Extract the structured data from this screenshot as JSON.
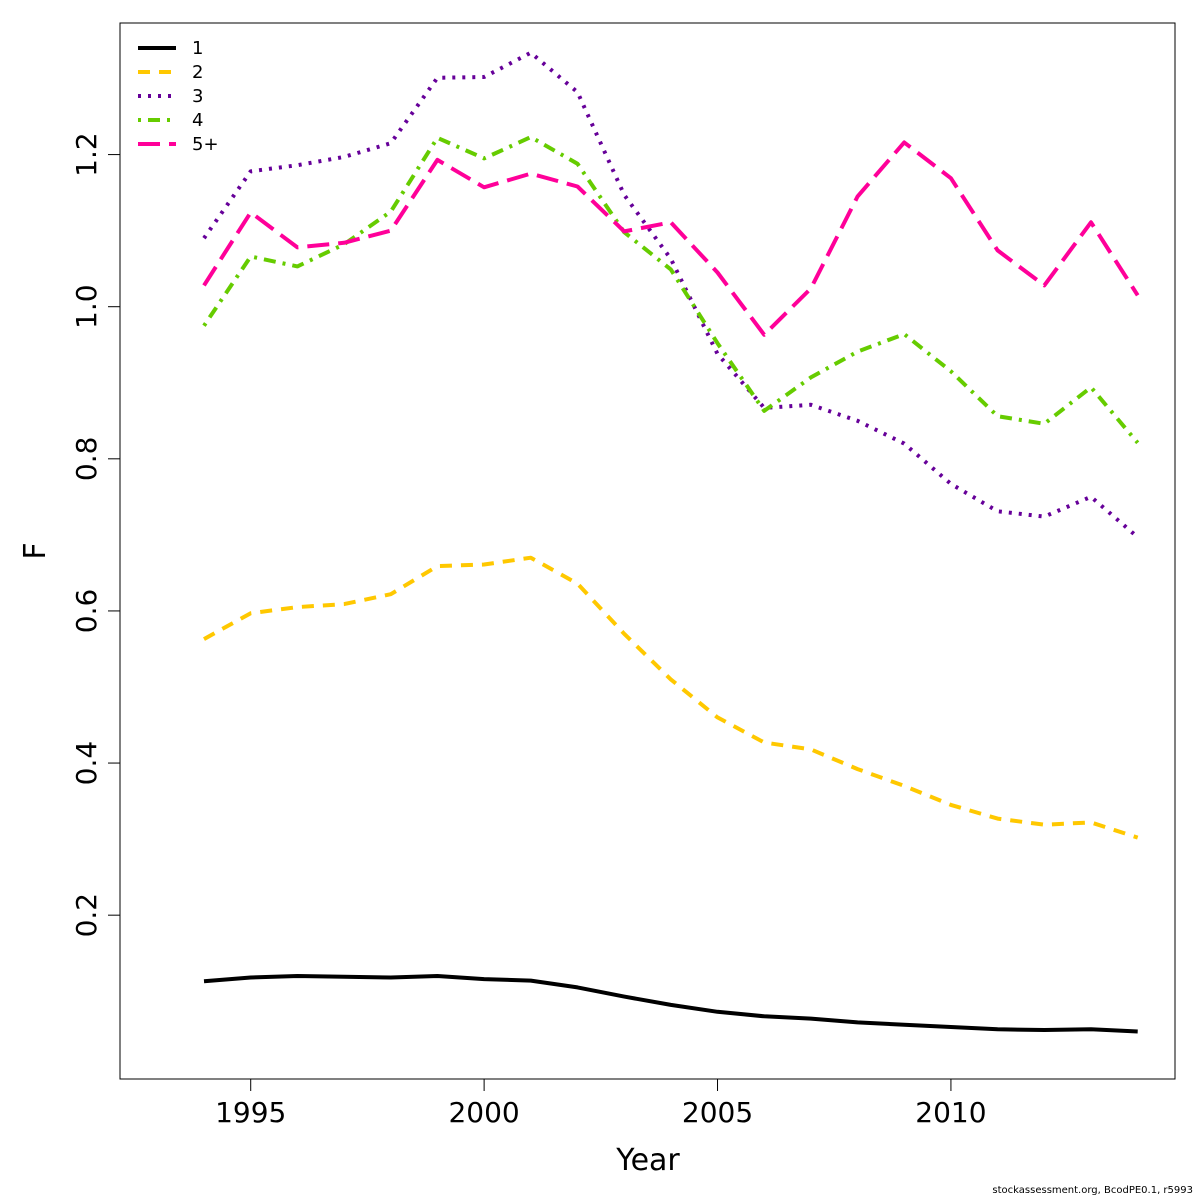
{
  "chart_data": {
    "type": "line",
    "title": "",
    "xlabel": "Year",
    "ylabel": "F",
    "xlim": [
      1992.2,
      2014.8
    ],
    "ylim": [
      -0.0154,
      1.373
    ],
    "x_ticks": [
      1995,
      2000,
      2005,
      2010
    ],
    "y_ticks": [
      0.2,
      0.4,
      0.6,
      0.8,
      1.0,
      1.2
    ],
    "y_tick_labels": [
      "0.2",
      "0.4",
      "0.6",
      "0.8",
      "1.0",
      "1.2"
    ],
    "grid": false,
    "legend_position": "top-left",
    "x": [
      1994,
      1995,
      1996,
      1997,
      1998,
      1999,
      2000,
      2001,
      2002,
      2003,
      2004,
      2005,
      2006,
      2007,
      2008,
      2009,
      2010,
      2011,
      2012,
      2013,
      2014
    ],
    "series": [
      {
        "name": "1",
        "color": "#000000",
        "dash": "solid",
        "values": [
          0.113,
          0.118,
          0.12,
          0.119,
          0.118,
          0.12,
          0.116,
          0.114,
          0.105,
          0.093,
          0.082,
          0.073,
          0.067,
          0.064,
          0.059,
          0.056,
          0.053,
          0.05,
          0.049,
          0.05,
          0.047
        ]
      },
      {
        "name": "2",
        "color": "#FFC800",
        "dash": "dashed",
        "values": [
          0.563,
          0.597,
          0.605,
          0.609,
          0.622,
          0.659,
          0.661,
          0.67,
          0.636,
          0.57,
          0.51,
          0.46,
          0.427,
          0.418,
          0.392,
          0.37,
          0.345,
          0.327,
          0.319,
          0.322,
          0.302
        ]
      },
      {
        "name": "3",
        "color": "#660099",
        "dash": "dotted",
        "values": [
          1.09,
          1.178,
          1.186,
          1.197,
          1.215,
          1.301,
          1.302,
          1.334,
          1.282,
          1.147,
          1.063,
          0.938,
          0.867,
          0.871,
          0.85,
          0.82,
          0.767,
          0.731,
          0.724,
          0.75,
          0.697
        ]
      },
      {
        "name": "4",
        "color": "#66CC00",
        "dash": "dotdash",
        "values": [
          0.975,
          1.066,
          1.053,
          1.082,
          1.125,
          1.222,
          1.195,
          1.223,
          1.188,
          1.098,
          1.049,
          0.952,
          0.863,
          0.907,
          0.941,
          0.964,
          0.915,
          0.856,
          0.846,
          0.894,
          0.821
        ]
      },
      {
        "name": "5+",
        "color": "#FF0099",
        "dash": "longdash",
        "values": [
          1.028,
          1.124,
          1.078,
          1.084,
          1.1,
          1.193,
          1.157,
          1.175,
          1.158,
          1.099,
          1.111,
          1.045,
          0.963,
          1.024,
          1.145,
          1.216,
          1.169,
          1.074,
          1.028,
          1.111,
          1.015
        ]
      }
    ]
  },
  "footnote": "stockassessment.org, BcodPE0.1, r5993"
}
